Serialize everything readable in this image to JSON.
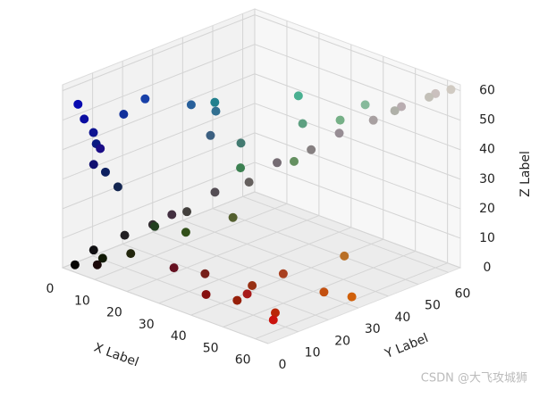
{
  "chart_data": {
    "type": "scatter3d",
    "x_label": "X Label",
    "y_label": "Y Label",
    "z_label": "Z Label",
    "xlim": [
      0,
      64
    ],
    "ylim": [
      0,
      64
    ],
    "zlim": [
      0,
      62
    ],
    "xticks": [
      0,
      10,
      20,
      30,
      40,
      50,
      60
    ],
    "yticks": [
      0,
      10,
      20,
      30,
      40,
      50,
      60
    ],
    "zticks": [
      0,
      10,
      20,
      30,
      40,
      50,
      60
    ],
    "grid": true,
    "x": [
      5,
      10,
      15,
      20,
      25,
      30,
      35,
      40,
      45,
      50,
      55,
      60,
      62,
      58,
      52,
      2,
      3,
      4,
      3,
      5,
      4,
      6,
      5,
      8,
      7,
      12,
      15,
      18,
      10,
      20,
      10,
      15,
      20,
      25,
      18,
      30,
      28,
      22,
      35,
      40,
      40,
      45,
      50,
      55,
      60,
      50,
      45,
      58,
      62,
      35,
      30,
      55,
      2,
      5,
      8,
      10
    ],
    "y": [
      5,
      10,
      14,
      20,
      24,
      30,
      34,
      40,
      44,
      50,
      54,
      60,
      63,
      60,
      55,
      3,
      4,
      6,
      8,
      5,
      10,
      12,
      15,
      4,
      20,
      30,
      35,
      30,
      40,
      38,
      20,
      25,
      15,
      30,
      40,
      45,
      50,
      55,
      55,
      58,
      5,
      10,
      8,
      12,
      6,
      20,
      15,
      25,
      30,
      10,
      5,
      35,
      2,
      8,
      3,
      12
    ],
    "z": [
      6,
      11,
      15,
      19,
      26,
      29,
      36,
      40,
      46,
      50,
      55,
      59,
      60,
      57,
      52,
      55,
      50,
      45,
      40,
      35,
      30,
      25,
      48,
      42,
      52,
      48,
      45,
      40,
      44,
      35,
      10,
      8,
      20,
      15,
      25,
      30,
      40,
      45,
      42,
      48,
      5,
      3,
      8,
      2,
      4,
      10,
      6,
      5,
      3,
      8,
      10,
      12,
      1,
      2,
      3,
      4
    ],
    "watermark": "CSDN @大飞攻城狮"
  }
}
